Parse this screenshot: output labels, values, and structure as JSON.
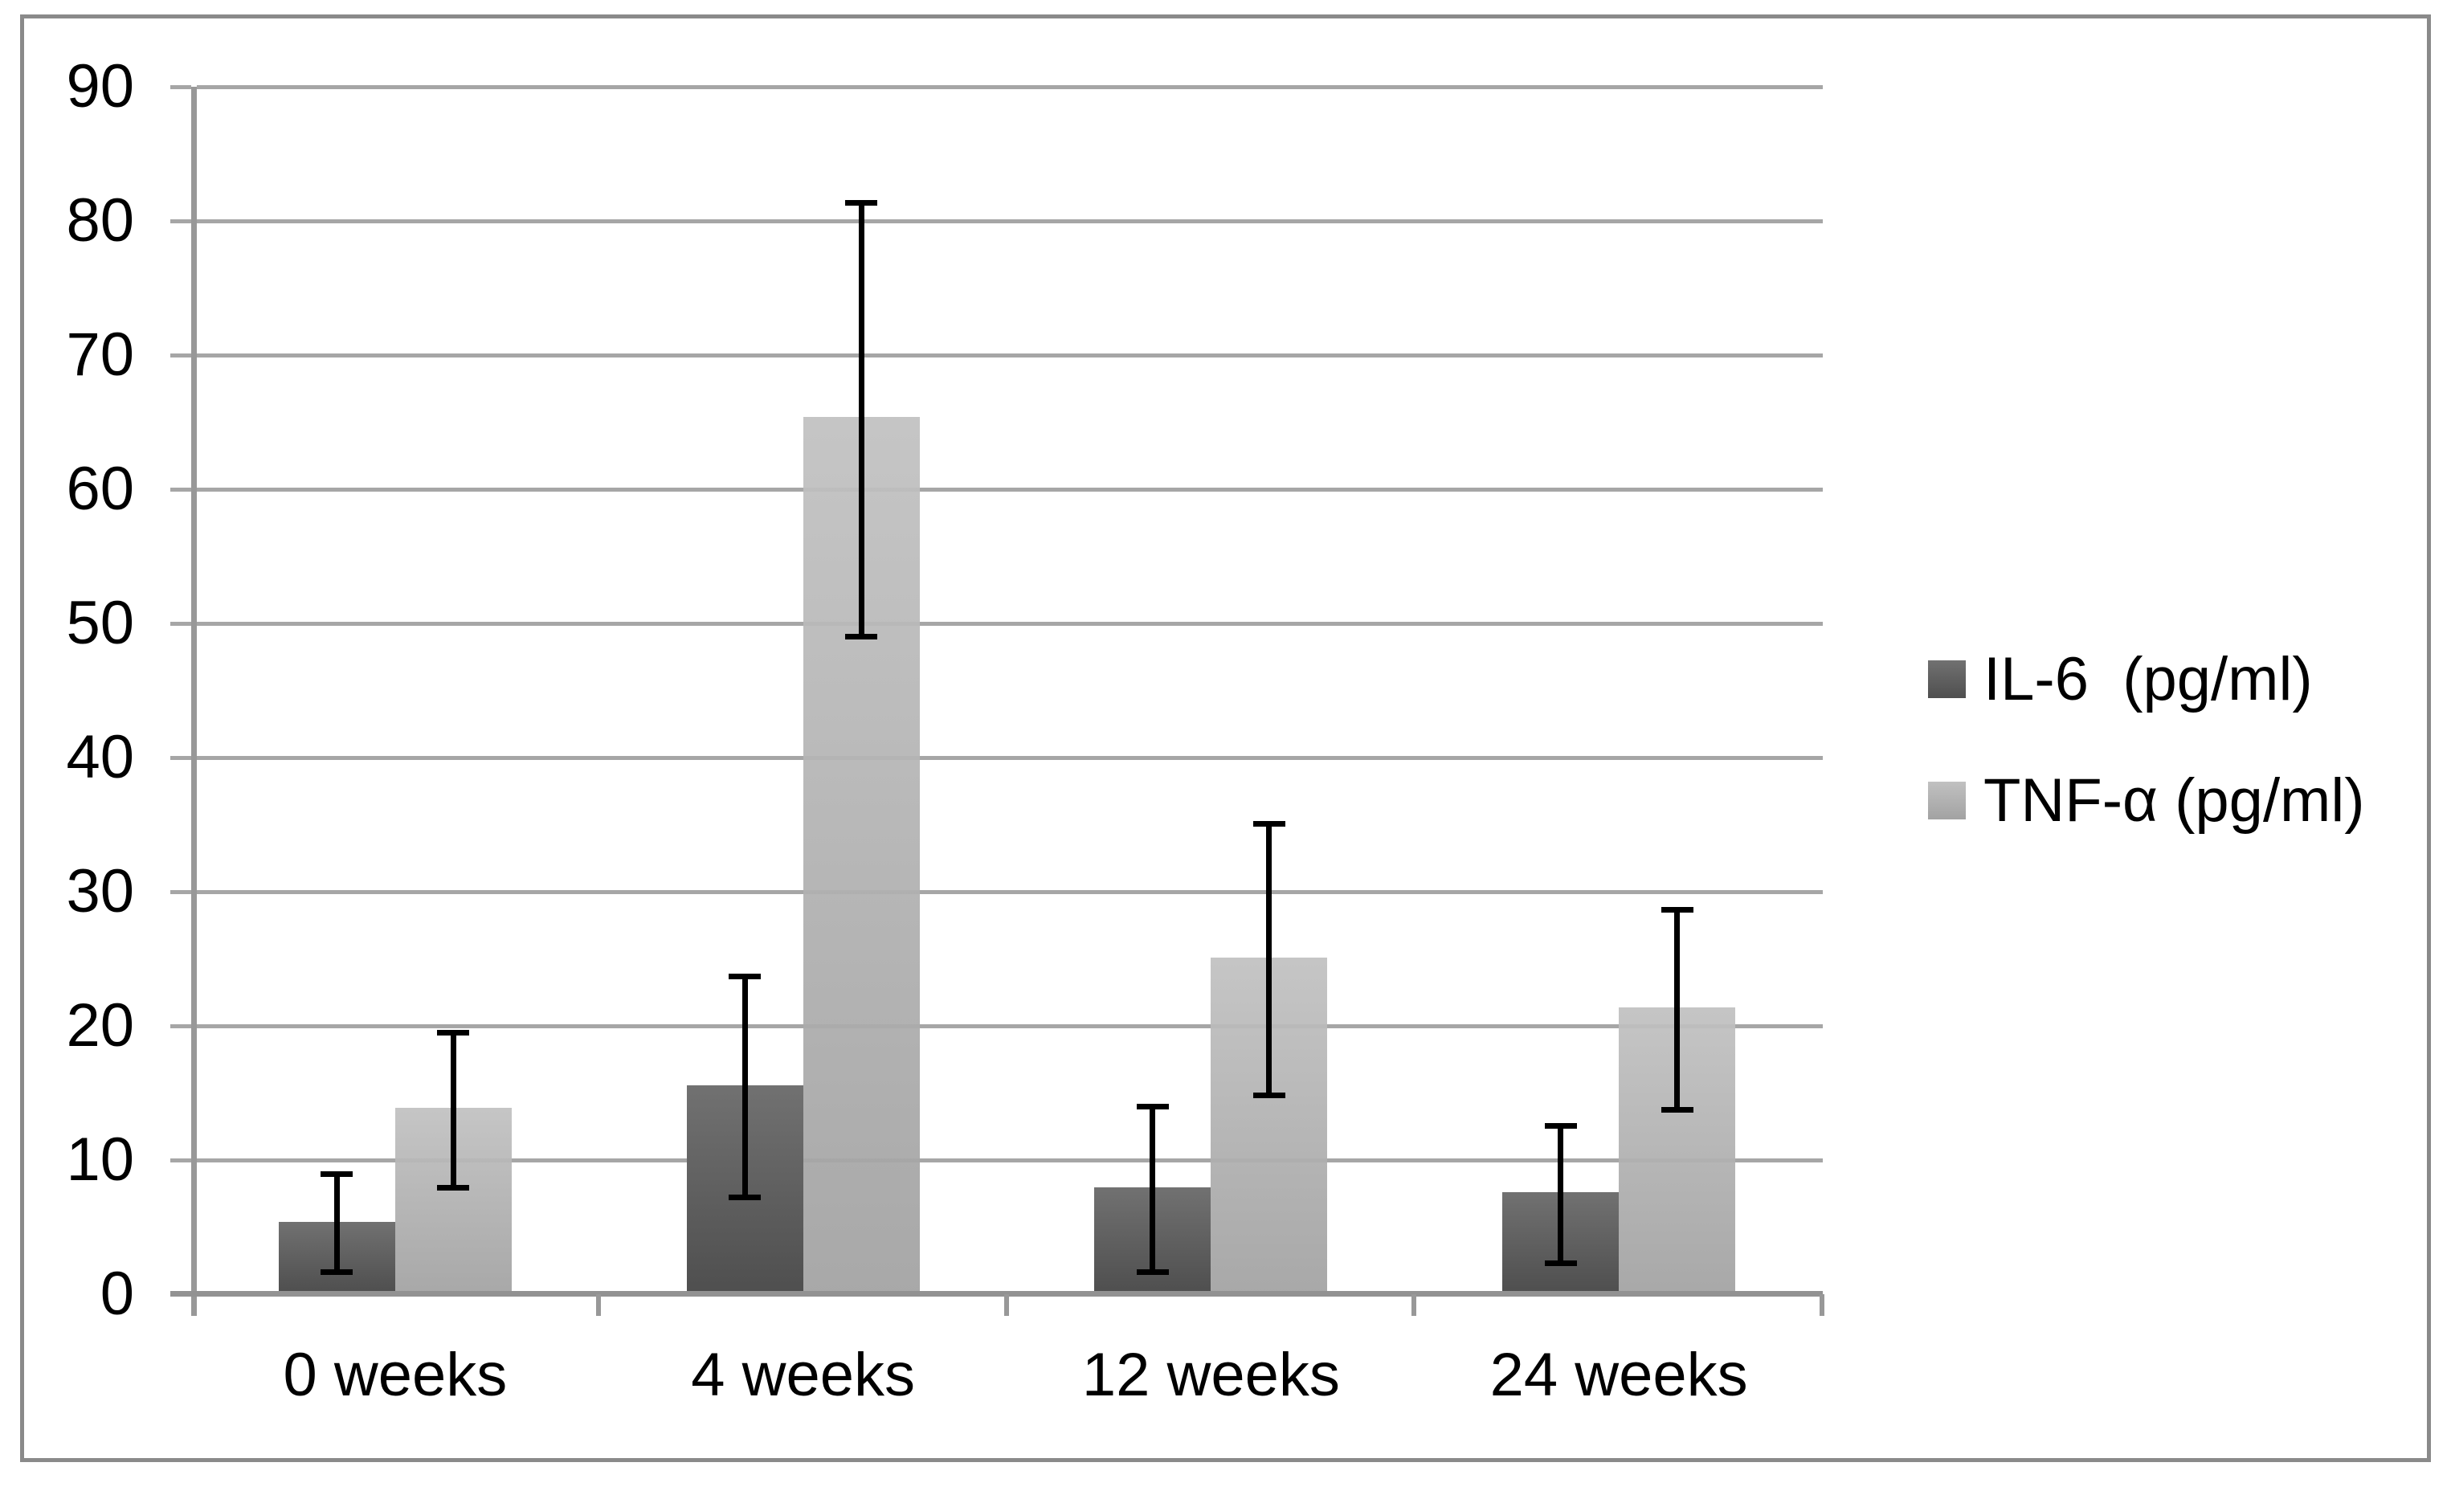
{
  "chart_data": {
    "type": "bar",
    "title": "",
    "xlabel": "",
    "ylabel": "",
    "categories": [
      "0 weeks",
      "4 weeks",
      "12 weeks",
      "24 weeks"
    ],
    "series": [
      {
        "name": "IL-6  (pg/ml)",
        "values": [
          5.2,
          15.4,
          7.8,
          7.4
        ],
        "error_low": [
          1.6,
          7.2,
          1.6,
          2.3
        ],
        "error_high": [
          9.0,
          23.7,
          14.0,
          12.6
        ],
        "color_top": "#717171",
        "color_bottom": "#4f4f4f",
        "fill_opacity": 1
      },
      {
        "name": "TNF-α (pg/ml)",
        "values": [
          13.7,
          65.2,
          24.9,
          21.2
        ],
        "error_low": [
          7.9,
          49.0,
          14.8,
          13.7
        ],
        "error_high": [
          19.5,
          81.4,
          35.1,
          28.7
        ],
        "color_top": "#c1c1c1",
        "color_bottom": "#a2a2a2",
        "fill_opacity": 0.93
      }
    ],
    "ylim": [
      0,
      90
    ],
    "ytick_step": 10,
    "grid": true,
    "legend_position": "right",
    "colors": {
      "gridline": "#a6a6a6",
      "axis": "#929292",
      "frame_border": "#8a8a8a",
      "error_bar": "#000000",
      "text": "#000000",
      "background": "#ffffff"
    }
  }
}
